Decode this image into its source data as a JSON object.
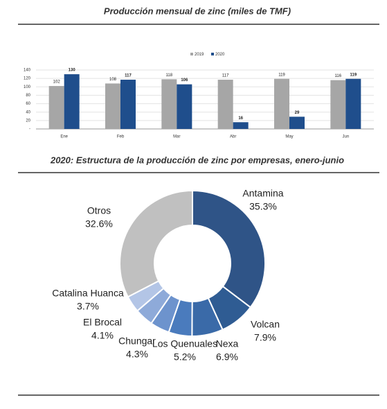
{
  "chart_data": [
    {
      "type": "bar",
      "title": "Producción mensual de zinc (miles de TMF)",
      "categories": [
        "Ene",
        "Feb",
        "Mar",
        "Abr",
        "May",
        "Jun"
      ],
      "series": [
        {
          "name": "2019",
          "color": "#a6a6a6",
          "values": [
            102,
            108,
            118,
            117,
            119,
            116
          ]
        },
        {
          "name": "2020",
          "color": "#1f4e8c",
          "values": [
            130,
            117,
            106,
            16,
            29,
            119
          ]
        }
      ],
      "ylim": [
        0,
        140
      ],
      "yticks": [
        {
          "value": 0,
          "label": "-"
        },
        20,
        40,
        60,
        80,
        100,
        120,
        140
      ],
      "grid": true,
      "legend": "top"
    },
    {
      "type": "donut",
      "title": "2020: Estructura de la producción de zinc por empresas, enero-junio",
      "categories": [
        "Antamina",
        "Volcan",
        "Nexa",
        "Los Quenuales",
        "Chungar",
        "El Brocal",
        "Catalina Huanca",
        "Otros"
      ],
      "values": [
        35.3,
        7.9,
        6.9,
        5.2,
        4.3,
        4.1,
        3.7,
        32.6
      ],
      "value_labels": [
        "35.3%",
        "7.9%",
        "6.9%",
        "5.2%",
        "4.3%",
        "4.1%",
        "3.7%",
        "32.6%"
      ],
      "colors": [
        "#2f5487",
        "#2f5c93",
        "#3a6aa8",
        "#4a7bbd",
        "#6d93cd",
        "#8eaad9",
        "#b3c5e6",
        "#c0c0c0"
      ]
    }
  ]
}
